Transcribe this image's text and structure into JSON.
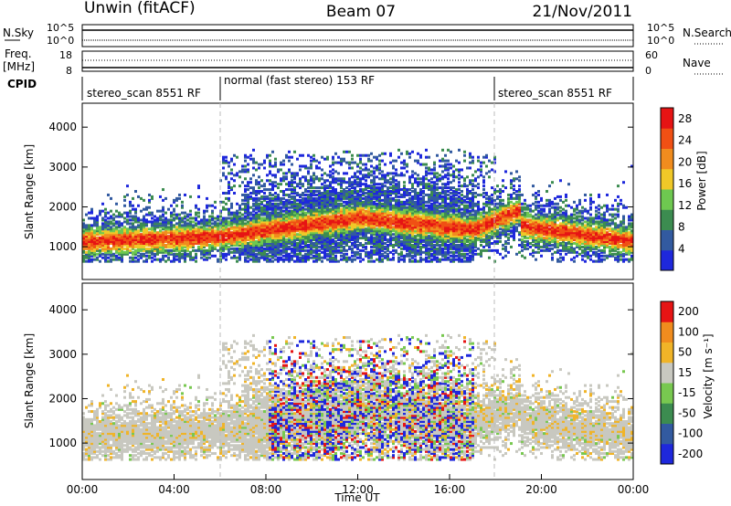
{
  "header": {
    "site": "Unwin (fitACF)",
    "beam": "Beam 07",
    "date": "21/Nov/2011"
  },
  "noise_panel": {
    "left_label": "N.Sky",
    "right_label": "N.Search",
    "left_ticks": [
      "10^5",
      "10^0"
    ],
    "right_ticks": [
      "10^5",
      "10^0"
    ]
  },
  "freq_panel": {
    "left_label_1": "Freq.",
    "left_label_2": "[MHz]",
    "right_label": "Nave",
    "left_ticks": [
      "18",
      "8"
    ],
    "right_ticks": [
      "60",
      "0"
    ]
  },
  "cpid": {
    "label": "CPID",
    "segments": [
      "stereo_scan 8551 RF",
      "normal (fast stereo) 153 RF",
      "stereo_scan 8551 RF"
    ]
  },
  "chart_data": [
    {
      "type": "heatmap",
      "title": "",
      "ylabel": "Slant Range [km]",
      "xlabel": "",
      "ylim": [
        180,
        4600
      ],
      "yticks": [
        "1000",
        "2000",
        "3000",
        "4000"
      ],
      "colorbar_label": "Power [dB]",
      "colorbar_ticks": [
        "4",
        "8",
        "12",
        "16",
        "20",
        "24",
        "28"
      ],
      "colorbar_range": [
        0,
        30
      ],
      "colors": [
        "#1e28dc",
        "#325aa0",
        "#3c8c50",
        "#6ec850",
        "#f0c828",
        "#f08c1e",
        "#f05014",
        "#e61414"
      ]
    },
    {
      "type": "heatmap",
      "title": "",
      "ylabel": "Slant Range [km]",
      "xlabel": "Time UT",
      "ylim": [
        180,
        4600
      ],
      "yticks": [
        "1000",
        "2000",
        "3000",
        "4000"
      ],
      "xticks": [
        "00:00",
        "04:00",
        "08:00",
        "12:00",
        "16:00",
        "20:00",
        "00:00"
      ],
      "colorbar_label": "Velocity [m s⁻¹]",
      "colorbar_ticks": [
        "200",
        "100",
        "50",
        "15",
        "-15",
        "-50",
        "-100",
        "-200"
      ],
      "colors": [
        "#1e28dc",
        "#325aa0",
        "#3c8c50",
        "#78c850",
        "#c8c8c0",
        "#f0b428",
        "#f08c1e",
        "#e61414"
      ]
    }
  ]
}
